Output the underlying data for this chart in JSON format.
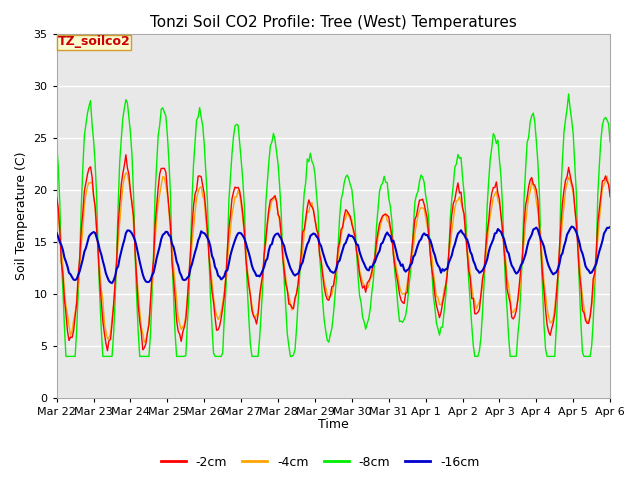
{
  "title": "Tonzi Soil CO2 Profile: Tree (West) Temperatures",
  "xlabel": "Time",
  "ylabel": "Soil Temperature (C)",
  "ylim": [
    0,
    35
  ],
  "series_labels": [
    "-2cm",
    "-4cm",
    "-8cm",
    "-16cm"
  ],
  "series_colors": [
    "#ff0000",
    "#ffa500",
    "#00ee00",
    "#0000cc"
  ],
  "xtick_labels": [
    "Mar 22",
    "Mar 23",
    "Mar 24",
    "Mar 25",
    "Mar 26",
    "Mar 27",
    "Mar 28",
    "Mar 29",
    "Mar 30",
    "Mar 31",
    "Apr 1",
    "Apr 2",
    "Apr 3",
    "Apr 4",
    "Apr 5",
    "Apr 6"
  ],
  "ytick_vals": [
    0,
    5,
    10,
    15,
    20,
    25,
    30,
    35
  ],
  "bg_color": "#e8e8e8",
  "title_fontsize": 11,
  "axis_label_fontsize": 9,
  "tick_fontsize": 8,
  "legend_box_label": "TZ_soilco2",
  "legend_box_facecolor": "#ffffcc",
  "legend_box_edgecolor": "#cc8800",
  "legend_box_textcolor": "#cc0000",
  "n_days": 15,
  "hours_per_day": 24,
  "base_temp": 13.5,
  "base_slope": 0.05,
  "peak_hour": 15
}
